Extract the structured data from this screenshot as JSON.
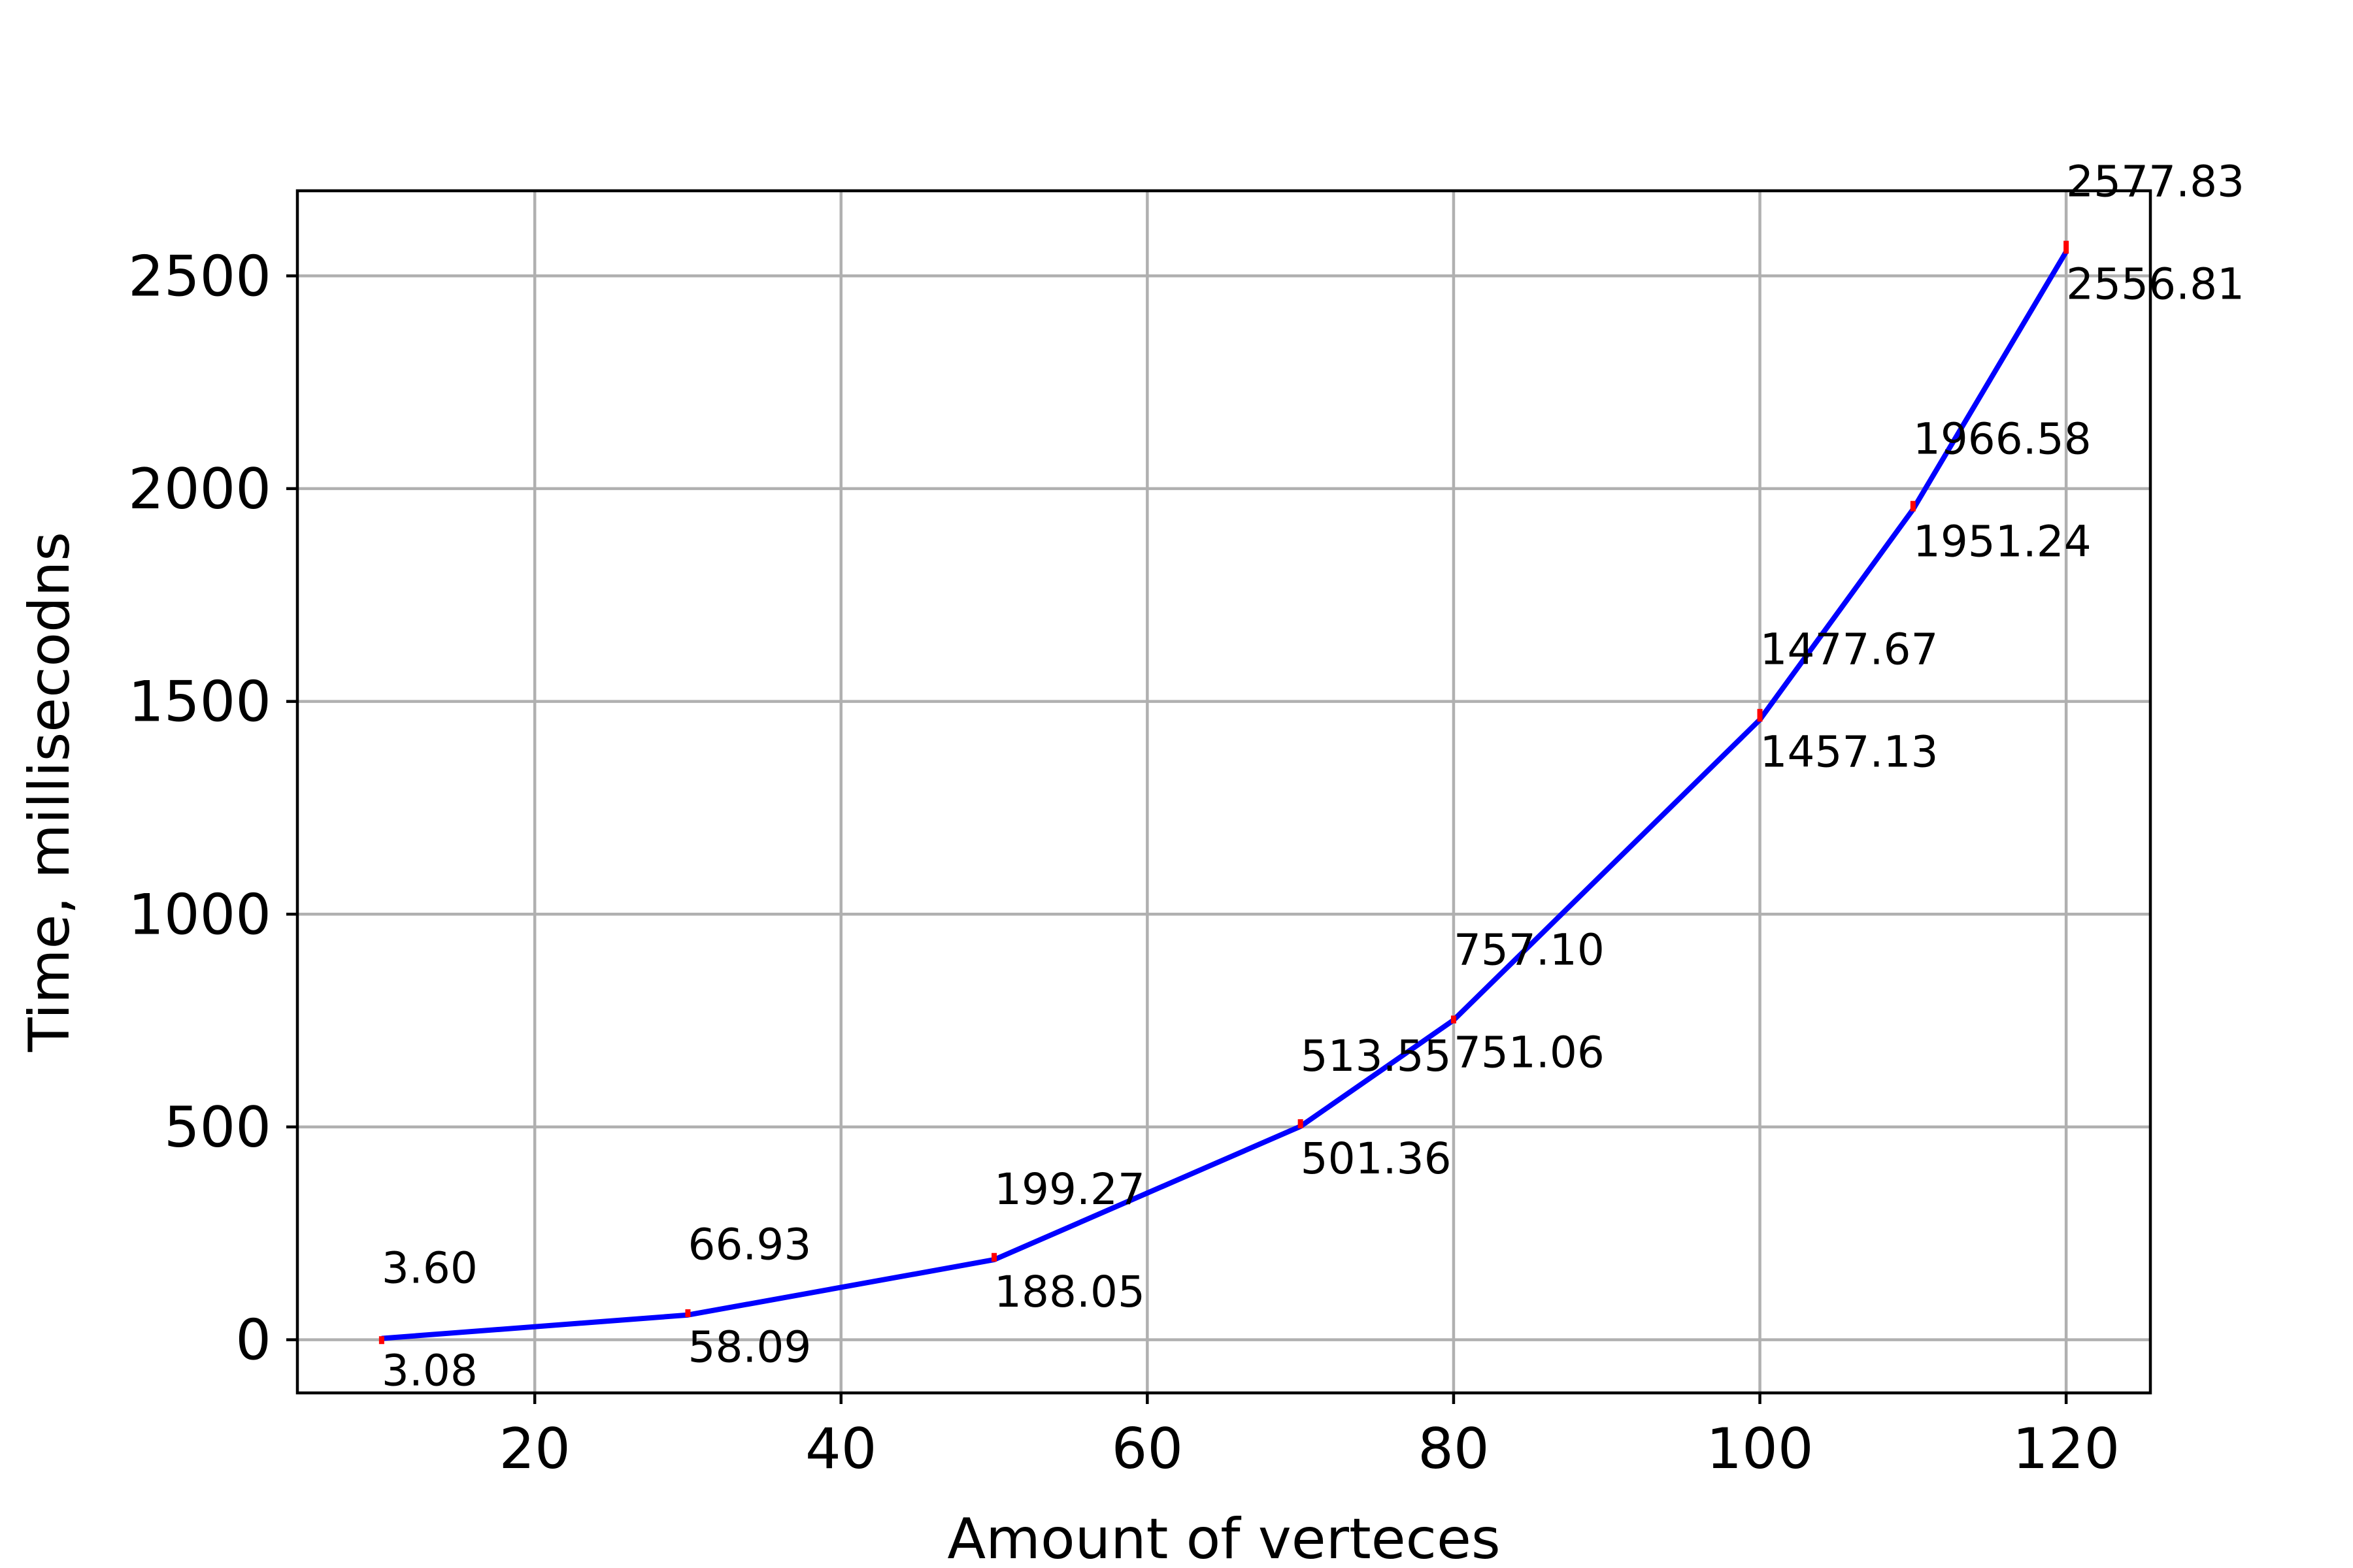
{
  "chart_data": {
    "type": "line",
    "xlabel": "Amount of verteces",
    "ylabel": "Time, millisecodns",
    "xlim": [
      4.5,
      125.5
    ],
    "ylim": [
      -125,
      2700
    ],
    "xticks": [
      20,
      40,
      60,
      80,
      100,
      120
    ],
    "yticks": [
      0,
      500,
      1000,
      1500,
      2000,
      2500
    ],
    "grid": true,
    "x": [
      10,
      30,
      50,
      70,
      80,
      100,
      110,
      120
    ],
    "series": [
      {
        "values": [
          3.08,
          58.09,
          188.05,
          501.36,
          751.06,
          1457.13,
          1951.24,
          2556.81
        ],
        "labels": [
          "3.08",
          "58.09",
          "188.05",
          "501.36",
          "751.06",
          "1457.13",
          "1951.24",
          "2556.81"
        ]
      },
      {
        "values": [
          3.6,
          66.93,
          199.27,
          513.55,
          757.1,
          1477.67,
          1966.58,
          2577.83
        ],
        "labels": [
          "3.60",
          "66.93",
          "199.27",
          "513.55",
          "757.10",
          "1477.67",
          "1966.58",
          "2577.83"
        ]
      }
    ],
    "colors": {
      "line": "#0000ff",
      "markers": "#ff0000",
      "grid": "#b0b0b0",
      "frame": "#000000"
    }
  }
}
